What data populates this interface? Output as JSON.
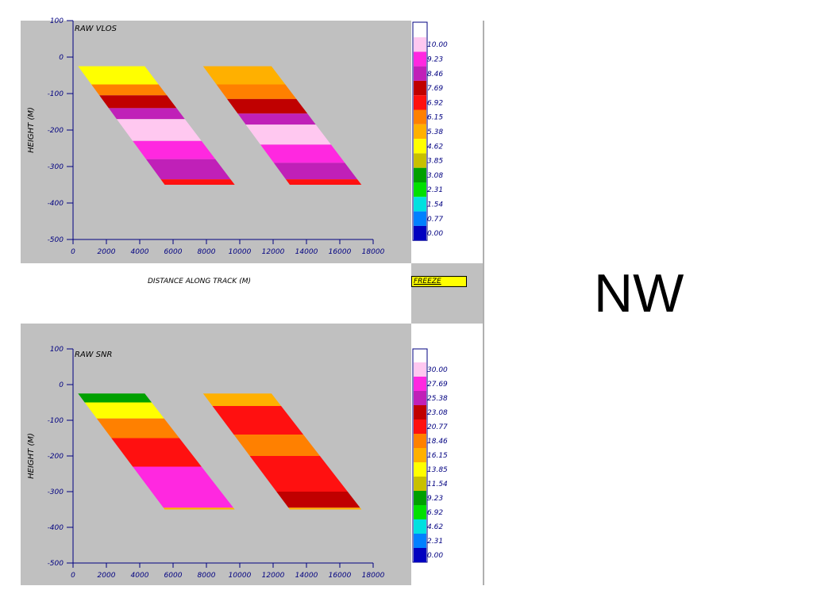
{
  "side_label": "NW",
  "freeze_label": "FREEZE",
  "colors": {
    "panel_bg": "#c0c0c0",
    "axis": "#000080"
  },
  "chart_data": [
    {
      "type": "heatmap",
      "title": "RAW VLOS",
      "xlabel": "DISTANCE ALONG TRACK (M)",
      "ylabel": "HEIGHT (M)",
      "xlim": [
        0,
        18000
      ],
      "ylim": [
        -500,
        100
      ],
      "x_ticks": [
        "0",
        "2000",
        "4000",
        "6000",
        "8000",
        "10000",
        "12000",
        "14000",
        "16000",
        "18000"
      ],
      "y_ticks": [
        "100",
        "0",
        "-100",
        "-200",
        "-300",
        "-400",
        "-500"
      ],
      "swaths": [
        {
          "x_top": [
            300,
            4300
          ],
          "x_bottom": [
            5500,
            9700
          ],
          "height_range": [
            -25,
            -350
          ],
          "bands": [
            {
              "from": -25,
              "to": -75,
              "value": 4.62
            },
            {
              "from": -75,
              "to": -105,
              "value": 6.15
            },
            {
              "from": -105,
              "to": -140,
              "value": 7.69
            },
            {
              "from": -140,
              "to": -170,
              "value": 8.46
            },
            {
              "from": -170,
              "to": -230,
              "value": 10.0
            },
            {
              "from": -230,
              "to": -280,
              "value": 9.23
            },
            {
              "from": -280,
              "to": -335,
              "value": 8.46
            },
            {
              "from": -335,
              "to": -350,
              "value": 6.92
            }
          ]
        },
        {
          "x_top": [
            7800,
            11900
          ],
          "x_bottom": [
            13000,
            17300
          ],
          "height_range": [
            -25,
            -350
          ],
          "bands": [
            {
              "from": -25,
              "to": -75,
              "value": 5.38
            },
            {
              "from": -75,
              "to": -115,
              "value": 6.15
            },
            {
              "from": -115,
              "to": -155,
              "value": 7.69
            },
            {
              "from": -155,
              "to": -185,
              "value": 8.46
            },
            {
              "from": -185,
              "to": -240,
              "value": 10.0
            },
            {
              "from": -240,
              "to": -290,
              "value": 9.23
            },
            {
              "from": -290,
              "to": -335,
              "value": 8.46
            },
            {
              "from": -335,
              "to": -350,
              "value": 6.92
            }
          ]
        }
      ],
      "colorbar": [
        {
          "label": "10.00",
          "color": "#ffc8f0"
        },
        {
          "label": "9.23",
          "color": "#ff28e0"
        },
        {
          "label": "8.46",
          "color": "#c020b8"
        },
        {
          "label": "7.69",
          "color": "#c00000"
        },
        {
          "label": "6.92",
          "color": "#ff1010"
        },
        {
          "label": "6.15",
          "color": "#ff8000"
        },
        {
          "label": "5.38",
          "color": "#ffb000"
        },
        {
          "label": "4.62",
          "color": "#ffff00"
        },
        {
          "label": "3.85",
          "color": "#c8c000"
        },
        {
          "label": "3.08",
          "color": "#00a000"
        },
        {
          "label": "2.31",
          "color": "#00e000"
        },
        {
          "label": "1.54",
          "color": "#00e0e0"
        },
        {
          "label": "0.77",
          "color": "#0080ff"
        },
        {
          "label": "0.00",
          "color": "#0000c0"
        }
      ]
    },
    {
      "type": "heatmap",
      "title": "RAW SNR",
      "xlabel": "",
      "ylabel": "HEIGHT (M)",
      "xlim": [
        0,
        18000
      ],
      "ylim": [
        -500,
        100
      ],
      "x_ticks": [
        "0",
        "2000",
        "4000",
        "6000",
        "8000",
        "10000",
        "12000",
        "14000",
        "16000",
        "18000"
      ],
      "y_ticks": [
        "100",
        "0",
        "-100",
        "-200",
        "-300",
        "-400",
        "-500"
      ],
      "swaths": [
        {
          "x_top": [
            300,
            4300
          ],
          "x_bottom": [
            5500,
            9700
          ],
          "height_range": [
            -25,
            -350
          ],
          "bands": [
            {
              "from": -25,
              "to": -50,
              "value": 9.23
            },
            {
              "from": -50,
              "to": -95,
              "value": 13.85
            },
            {
              "from": -95,
              "to": -150,
              "value": 18.46
            },
            {
              "from": -150,
              "to": -230,
              "value": 20.77
            },
            {
              "from": -230,
              "to": -345,
              "value": 27.69
            },
            {
              "from": -345,
              "to": -350,
              "value": 16.15
            }
          ]
        },
        {
          "x_top": [
            7800,
            11900
          ],
          "x_bottom": [
            13000,
            17300
          ],
          "height_range": [
            -25,
            -350
          ],
          "bands": [
            {
              "from": -25,
              "to": -60,
              "value": 16.15
            },
            {
              "from": -60,
              "to": -140,
              "value": 20.77
            },
            {
              "from": -140,
              "to": -200,
              "value": 18.46
            },
            {
              "from": -200,
              "to": -300,
              "value": 20.77
            },
            {
              "from": -300,
              "to": -345,
              "value": 23.08
            },
            {
              "from": -345,
              "to": -350,
              "value": 16.15
            }
          ]
        }
      ],
      "colorbar": [
        {
          "label": "30.00",
          "color": "#ffc8f0"
        },
        {
          "label": "27.69",
          "color": "#ff28e0"
        },
        {
          "label": "25.38",
          "color": "#c020b8"
        },
        {
          "label": "23.08",
          "color": "#c00000"
        },
        {
          "label": "20.77",
          "color": "#ff1010"
        },
        {
          "label": "18.46",
          "color": "#ff8000"
        },
        {
          "label": "16.15",
          "color": "#ffb000"
        },
        {
          "label": "13.85",
          "color": "#ffff00"
        },
        {
          "label": "11.54",
          "color": "#c8c000"
        },
        {
          "label": "9.23",
          "color": "#00a000"
        },
        {
          "label": "6.92",
          "color": "#00e000"
        },
        {
          "label": "4.62",
          "color": "#00e0e0"
        },
        {
          "label": "2.31",
          "color": "#0080ff"
        },
        {
          "label": "0.00",
          "color": "#0000c0"
        }
      ]
    }
  ]
}
